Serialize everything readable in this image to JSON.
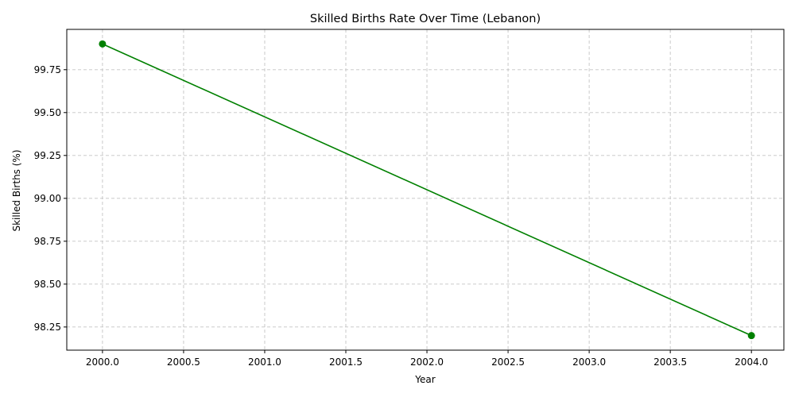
{
  "chart_data": {
    "type": "line",
    "title": "Skilled Births Rate Over Time (Lebanon)",
    "xlabel": "Year",
    "ylabel": "Skilled Births (%)",
    "xlim": [
      1999.78,
      2004.2
    ],
    "ylim": [
      98.115,
      99.985
    ],
    "x_ticks": [
      2000.0,
      2000.5,
      2001.0,
      2001.5,
      2002.0,
      2002.5,
      2003.0,
      2003.5,
      2004.0
    ],
    "x_tick_labels": [
      "2000.0",
      "2000.5",
      "2001.0",
      "2001.5",
      "2002.0",
      "2002.5",
      "2003.0",
      "2003.5",
      "2004.0"
    ],
    "y_ticks": [
      98.25,
      98.5,
      98.75,
      99.0,
      99.25,
      99.5,
      99.75
    ],
    "y_tick_labels": [
      "98.25",
      "98.50",
      "98.75",
      "99.00",
      "99.25",
      "99.50",
      "99.75"
    ],
    "grid": true,
    "series": [
      {
        "x": [
          2000,
          2004
        ],
        "y": [
          99.9,
          98.2
        ],
        "color": "#008000",
        "marker": "circle"
      }
    ]
  }
}
